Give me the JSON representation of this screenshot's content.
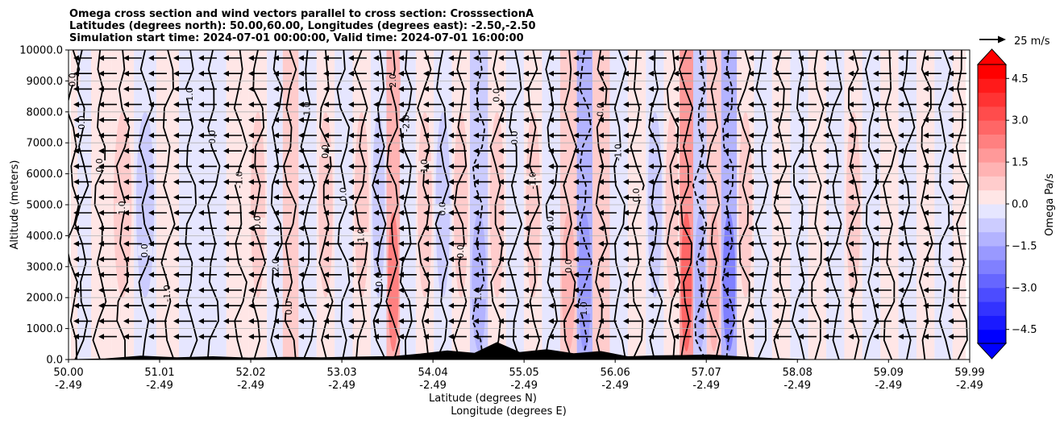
{
  "chart_data": {
    "type": "heatmap",
    "title_lines": [
      "Omega cross section and wind vectors parallel to cross section: CrosssectionA",
      "Latitudes (degrees north): 50.00,60.00, Longitudes (degrees east): -2.50,-2.50",
      "Simulation start time: 2024-07-01 00:00:00, Valid time: 2024-07-01 16:00:00"
    ],
    "ylabel": "Altitude (meters)",
    "xlabel_line1": "Latitude (degrees N)",
    "xlabel_line2": "Longitude (degrees E)",
    "ylim": [
      0,
      10000
    ],
    "xlim": [
      50.0,
      59.99
    ],
    "y_ticks": [
      0,
      1000,
      2000,
      3000,
      4000,
      5000,
      6000,
      7000,
      8000,
      9000,
      10000
    ],
    "y_tick_labels": [
      "0.0",
      "1000.0",
      "2000.0",
      "3000.0",
      "4000.0",
      "5000.0",
      "6000.0",
      "7000.0",
      "8000.0",
      "9000.0",
      "10000.0"
    ],
    "x_ticks": [
      {
        "lat": "50.00",
        "lon": "-2.49",
        "value": 50.0
      },
      {
        "lat": "51.01",
        "lon": "-2.49",
        "value": 51.01
      },
      {
        "lat": "52.02",
        "lon": "-2.49",
        "value": 52.02
      },
      {
        "lat": "53.03",
        "lon": "-2.49",
        "value": 53.03
      },
      {
        "lat": "54.04",
        "lon": "-2.49",
        "value": 54.04
      },
      {
        "lat": "55.05",
        "lon": "-2.49",
        "value": 55.05
      },
      {
        "lat": "56.06",
        "lon": "-2.49",
        "value": 56.06
      },
      {
        "lat": "57.07",
        "lon": "-2.49",
        "value": 57.07
      },
      {
        "lat": "58.08",
        "lon": "-2.49",
        "value": 58.08
      },
      {
        "lat": "59.09",
        "lon": "-2.49",
        "value": 59.09
      },
      {
        "lat": "59.99",
        "lon": "-2.49",
        "value": 59.99
      }
    ],
    "omega_columns": [
      {
        "lat": 50.05,
        "value": 0.3
      },
      {
        "lat": 50.15,
        "value": -0.4
      },
      {
        "lat": 50.35,
        "value": 0.5
      },
      {
        "lat": 50.6,
        "value": 0.6
      },
      {
        "lat": 50.85,
        "value": -0.6
      },
      {
        "lat": 51.1,
        "value": 0.4
      },
      {
        "lat": 51.35,
        "value": -0.5
      },
      {
        "lat": 51.6,
        "value": -0.3
      },
      {
        "lat": 51.9,
        "value": 0.5
      },
      {
        "lat": 52.1,
        "value": 0.8
      },
      {
        "lat": 52.3,
        "value": -0.4
      },
      {
        "lat": 52.45,
        "value": 1.0
      },
      {
        "lat": 52.65,
        "value": -0.5
      },
      {
        "lat": 52.85,
        "value": 0.7
      },
      {
        "lat": 53.05,
        "value": -0.4
      },
      {
        "lat": 53.25,
        "value": 0.6
      },
      {
        "lat": 53.45,
        "value": -0.6
      },
      {
        "lat": 53.6,
        "value": 2.4
      },
      {
        "lat": 53.75,
        "value": -0.5
      },
      {
        "lat": 53.95,
        "value": 0.7
      },
      {
        "lat": 54.15,
        "value": -0.6
      },
      {
        "lat": 54.35,
        "value": 0.9
      },
      {
        "lat": 54.55,
        "value": -1.1
      },
      {
        "lat": 54.75,
        "value": 0.7
      },
      {
        "lat": 54.95,
        "value": -0.5
      },
      {
        "lat": 55.15,
        "value": 0.6
      },
      {
        "lat": 55.35,
        "value": -0.4
      },
      {
        "lat": 55.55,
        "value": 1.3
      },
      {
        "lat": 55.72,
        "value": -2.0
      },
      {
        "lat": 55.9,
        "value": 1.0
      },
      {
        "lat": 56.1,
        "value": -0.5
      },
      {
        "lat": 56.3,
        "value": 0.5
      },
      {
        "lat": 56.5,
        "value": -0.6
      },
      {
        "lat": 56.7,
        "value": 0.7
      },
      {
        "lat": 56.85,
        "value": 3.0
      },
      {
        "lat": 57.0,
        "value": -1.4
      },
      {
        "lat": 57.15,
        "value": 1.2
      },
      {
        "lat": 57.32,
        "value": -2.2
      },
      {
        "lat": 57.5,
        "value": 0.6
      },
      {
        "lat": 57.7,
        "value": -0.4
      },
      {
        "lat": 57.9,
        "value": 0.4
      },
      {
        "lat": 58.1,
        "value": -0.5
      },
      {
        "lat": 58.3,
        "value": 0.5
      },
      {
        "lat": 58.5,
        "value": -0.4
      },
      {
        "lat": 58.7,
        "value": 0.6
      },
      {
        "lat": 58.9,
        "value": -0.3
      },
      {
        "lat": 59.1,
        "value": 0.3
      },
      {
        "lat": 59.3,
        "value": -0.5
      },
      {
        "lat": 59.5,
        "value": 0.4
      },
      {
        "lat": 59.7,
        "value": -0.3
      },
      {
        "lat": 59.9,
        "value": 0.3
      }
    ],
    "contour_labels": [
      "0.0",
      "0.0",
      "0.0",
      "1.0",
      "0.0",
      "-1.0",
      "1.0",
      "0.0",
      "-1.0",
      "0.0",
      "2.0",
      "0.0",
      "1.0",
      "0.0",
      "0.0",
      "-1.0",
      "0.0",
      "2.0",
      "-2.0",
      "1.0",
      "0.0",
      "0.0",
      "1.0",
      "0.0",
      "0.0",
      "-1.0",
      "0.0",
      "0.0",
      "1.0",
      "0.0",
      "-1.0",
      "0.0"
    ],
    "wind_vectors": {
      "direction": "westward",
      "reference_label": "25 m/s",
      "reference_speed": 25,
      "typical_speed": 14
    },
    "terrain": [
      {
        "lat": 50.4,
        "height": 20
      },
      {
        "lat": 50.8,
        "height": 110
      },
      {
        "lat": 51.2,
        "height": 60
      },
      {
        "lat": 51.6,
        "height": 90
      },
      {
        "lat": 52.0,
        "height": 50
      },
      {
        "lat": 52.4,
        "height": 70
      },
      {
        "lat": 52.8,
        "height": 60
      },
      {
        "lat": 53.2,
        "height": 80
      },
      {
        "lat": 53.6,
        "height": 100
      },
      {
        "lat": 53.9,
        "height": 180
      },
      {
        "lat": 54.2,
        "height": 280
      },
      {
        "lat": 54.5,
        "height": 200
      },
      {
        "lat": 54.75,
        "height": 550
      },
      {
        "lat": 55.0,
        "height": 230
      },
      {
        "lat": 55.3,
        "height": 320
      },
      {
        "lat": 55.6,
        "height": 190
      },
      {
        "lat": 55.9,
        "height": 260
      },
      {
        "lat": 56.2,
        "height": 90
      },
      {
        "lat": 56.5,
        "height": 120
      },
      {
        "lat": 56.8,
        "height": 130
      },
      {
        "lat": 57.1,
        "height": 150
      },
      {
        "lat": 57.4,
        "height": 100
      },
      {
        "lat": 57.8,
        "height": 30
      },
      {
        "lat": 58.2,
        "height": 0
      }
    ],
    "colorbar": {
      "label": "Omega Pa/s",
      "min": -5.0,
      "max": 5.0,
      "extend": "both",
      "ticks": [
        4.5,
        3.0,
        1.5,
        0.0,
        -1.5,
        -3.0,
        -4.5
      ],
      "tick_labels": [
        "4.5",
        "3.0",
        "1.5",
        "0.0",
        "−1.5",
        "−3.0",
        "−4.5"
      ],
      "colormap": "bwr",
      "negative_color": "#0000ff",
      "positive_color": "#ff0000",
      "neutral_color": "#ffffff"
    }
  }
}
